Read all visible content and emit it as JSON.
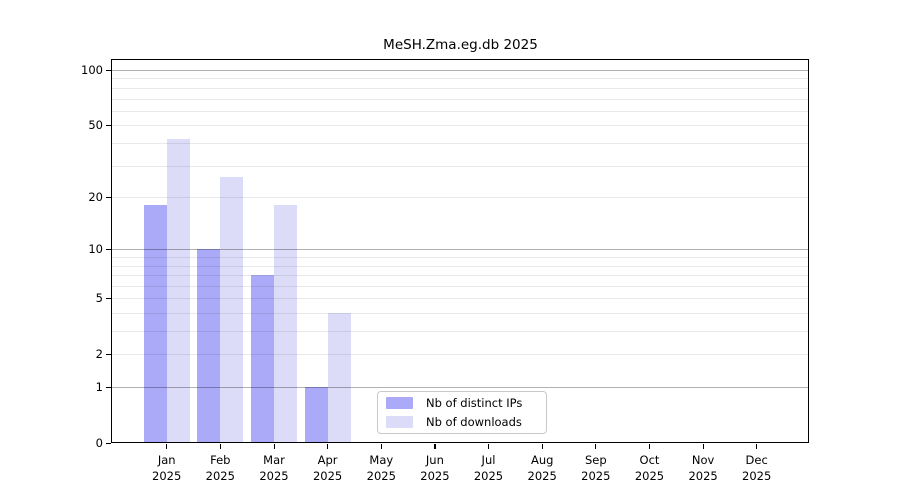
{
  "title": "MeSH.Zma.eg.db 2025",
  "chart_data": {
    "type": "bar",
    "title": "MeSH.Zma.eg.db 2025",
    "xlabel": "",
    "ylabel": "",
    "y_scale": "log10(1+x)",
    "ylim": [
      0,
      114
    ],
    "grid": true,
    "legend_position": "lower center",
    "categories": [
      "Jan",
      "Feb",
      "Mar",
      "Apr",
      "May",
      "Jun",
      "Jul",
      "Aug",
      "Sep",
      "Oct",
      "Nov",
      "Dec"
    ],
    "category_year": "2025",
    "y_ticks": [
      100,
      50,
      20,
      10,
      5,
      2,
      1,
      0
    ],
    "major_gridlines": [
      1,
      10,
      100
    ],
    "minor_gridlines": [
      2,
      3,
      4,
      5,
      6,
      7,
      8,
      9,
      20,
      30,
      40,
      50,
      60,
      70,
      80,
      90
    ],
    "series": [
      {
        "name": "Nb of distinct IPs",
        "color": "#aaaaf8",
        "values": [
          18,
          10,
          7,
          1,
          0,
          0,
          0,
          0,
          0,
          0,
          0,
          0
        ]
      },
      {
        "name": "Nb of downloads",
        "color": "#dcdcf8",
        "values": [
          42,
          26,
          18,
          4,
          0,
          0,
          0,
          0,
          0,
          0,
          0,
          0
        ]
      }
    ]
  },
  "legend": {
    "items": [
      {
        "label": "Nb of distinct IPs",
        "color": "#aaaaf8"
      },
      {
        "label": "Nb of downloads",
        "color": "#dcdcf8"
      }
    ]
  }
}
